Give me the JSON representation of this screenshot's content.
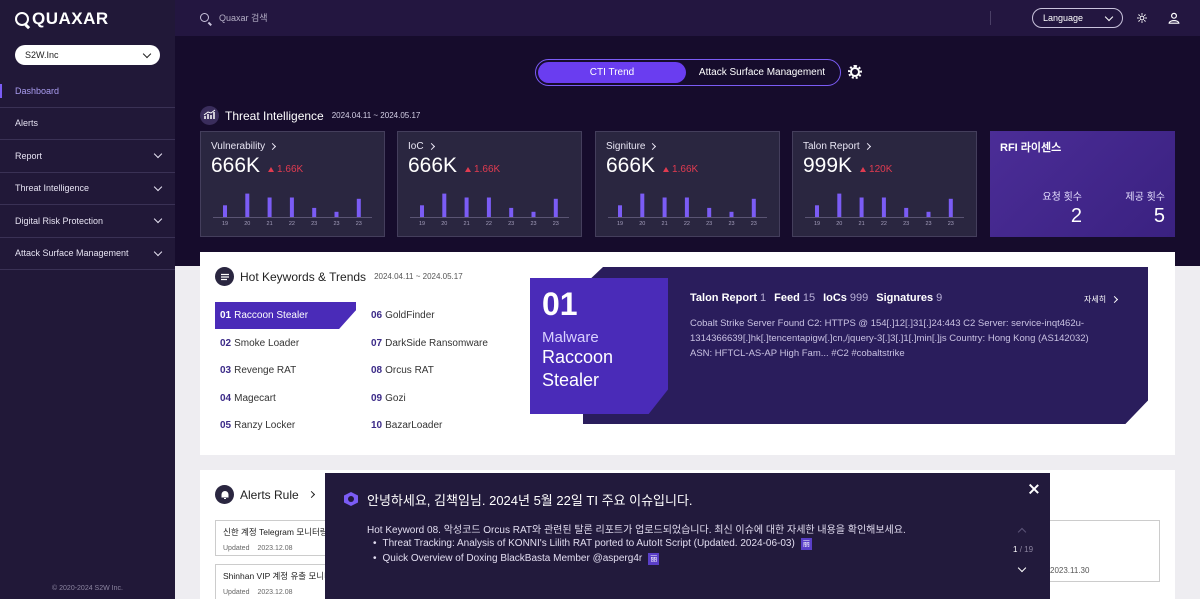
{
  "app": {
    "logo": "QUAXAR",
    "org": "S2W.Inc",
    "copyright": "© 2020-2024 S2W Inc."
  },
  "sidebar": {
    "items": [
      {
        "label": "Dashboard",
        "active": true,
        "expandable": false
      },
      {
        "label": "Alerts",
        "active": false,
        "expandable": false
      },
      {
        "label": "Report",
        "active": false,
        "expandable": true
      },
      {
        "label": "Threat Intelligence",
        "active": false,
        "expandable": true
      },
      {
        "label": "Digital Risk Protection",
        "active": false,
        "expandable": true
      },
      {
        "label": "Attack Surface Management",
        "active": false,
        "expandable": true
      }
    ]
  },
  "topbar": {
    "search_placeholder": "Quaxar 검색",
    "language_label": "Language"
  },
  "toggle": {
    "active": "CTI Trend",
    "inactive": "Attack Surface Management"
  },
  "threat_intel": {
    "title": "Threat Intelligence",
    "date_range": "2024.04.11 ~ 2024.05.17",
    "chart_labels": [
      "19",
      "20",
      "21",
      "22",
      "23",
      "23",
      "23"
    ],
    "cards": [
      {
        "title": "Vulnerability",
        "value": "666K",
        "delta": "1.66K",
        "bars": [
          0.45,
          0.9,
          0.75,
          0.75,
          0.35,
          0.2,
          0.7
        ]
      },
      {
        "title": "IoC",
        "value": "666K",
        "delta": "1.66K",
        "bars": [
          0.45,
          0.9,
          0.75,
          0.75,
          0.35,
          0.2,
          0.7
        ]
      },
      {
        "title": "Signiture",
        "value": "666K",
        "delta": "1.66K",
        "bars": [
          0.45,
          0.9,
          0.75,
          0.75,
          0.35,
          0.2,
          0.7
        ]
      },
      {
        "title": "Talon Report",
        "value": "999K",
        "delta": "120K",
        "bars": [
          0.45,
          0.9,
          0.75,
          0.75,
          0.35,
          0.2,
          0.7
        ]
      }
    ],
    "rfi": {
      "title": "RFI 라이센스",
      "request_label": "요청 횟수",
      "request_value": "2",
      "provide_label": "제공 횟수",
      "provide_value": "5"
    }
  },
  "hot_keywords": {
    "title": "Hot Keywords & Trends",
    "date_range": "2024.04.11 ~ 2024.05.17",
    "items": [
      {
        "num": "01",
        "name": "Raccoon Stealer"
      },
      {
        "num": "02",
        "name": "Smoke Loader"
      },
      {
        "num": "03",
        "name": "Revenge RAT"
      },
      {
        "num": "04",
        "name": "Magecart"
      },
      {
        "num": "05",
        "name": "Ranzy Locker"
      },
      {
        "num": "06",
        "name": "GoldFinder"
      },
      {
        "num": "07",
        "name": "DarkSide Ransomware"
      },
      {
        "num": "08",
        "name": "Orcus RAT"
      },
      {
        "num": "09",
        "name": "Gozi"
      },
      {
        "num": "10",
        "name": "BazarLoader"
      }
    ],
    "featured": {
      "rank": "01",
      "type": "Malware",
      "name_line1": "Raccoon",
      "name_line2": "Stealer",
      "stats": [
        {
          "label": "Talon Report",
          "value": "1"
        },
        {
          "label": "Feed",
          "value": "15"
        },
        {
          "label": "IoCs",
          "value": "999"
        },
        {
          "label": "Signatures",
          "value": "9"
        }
      ],
      "detail_label": "자세히",
      "description": "Cobalt Strike Server Found C2: HTTPS @ 154[.]12[.]31[.]24:443 C2 Server: service-inqt462u-1314366639[.]hk[.]tencentapigw[.]cn,/jquery-3[.]3[.]1[.]min[.]js Country: Hong Kong (AS142032) ASN: HFTCL-AS-AP High Fam... #C2 #cobaltstrike"
    }
  },
  "alerts": {
    "title": "Alerts Rule",
    "cards": [
      {
        "title": "신한 계정 Telegram 모니터링",
        "updated_label": "Updated",
        "date": "2023.12.08"
      },
      {
        "title": "Shinhan VIP 계정 유출 모니터",
        "updated_label": "Updated",
        "date": "2023.12.08"
      }
    ],
    "ghost_date": "2023.11.30"
  },
  "modal": {
    "title": "안녕하세요, 김책임님. 2024년 5월 22일 TI 주요 이슈입니다.",
    "body": "Hot Keyword 08. 악성코드 Orcus RAT와 관련된 탈론 리포트가 업로드되었습니다. 최신 이슈에 대한 자세한 내용을 확인해보세요.",
    "links": [
      {
        "text": "Threat Tracking: Analysis of KONNI's Lilith RAT ported to AutoIt Script (Updated. 2024-06-03)",
        "tag": "丽"
      },
      {
        "text": "Quick Overview of Doxing BlackBasta Member @asperg4r",
        "tag": "丽"
      }
    ],
    "page_current": "1",
    "page_total": "/ 19"
  }
}
